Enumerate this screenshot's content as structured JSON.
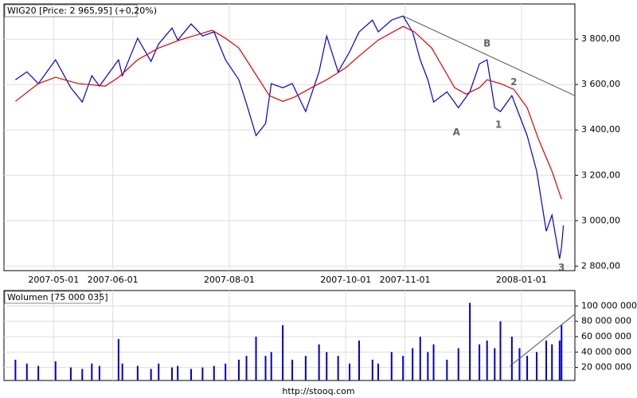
{
  "chart_data": [
    {
      "type": "line",
      "title": "WIG20 [Price: 2 965,95] (+0,20%)",
      "xlim": [
        "2007-04-05",
        "2008-01-29"
      ],
      "xticks": [
        "2007-05-01",
        "2007-06-01",
        "2007-08-01",
        "2007-10-01",
        "2007-11-01",
        "2008-01-01"
      ],
      "ylim": [
        2780,
        3955
      ],
      "yticks": [
        {
          "value": 2800,
          "label": "2 800,00"
        },
        {
          "value": 3000,
          "label": "3 000,00"
        },
        {
          "value": 3200,
          "label": "3 200,00"
        },
        {
          "value": 3400,
          "label": "3 400,00"
        },
        {
          "value": 3600,
          "label": "3 600,00"
        },
        {
          "value": 3800,
          "label": "3 800,00"
        }
      ],
      "grid": true,
      "series": [
        {
          "color": "#0000cc",
          "x": [
            "2007-04-11",
            "2007-04-17",
            "2007-04-23",
            "2007-05-02",
            "2007-05-10",
            "2007-05-16",
            "2007-05-21",
            "2007-05-25",
            "2007-06-04",
            "2007-06-06",
            "2007-06-14",
            "2007-06-21",
            "2007-06-25",
            "2007-07-02",
            "2007-07-05",
            "2007-07-12",
            "2007-07-18",
            "2007-07-24",
            "2007-07-30",
            "2007-08-06",
            "2007-08-10",
            "2007-08-15",
            "2007-08-20",
            "2007-08-23",
            "2007-08-29",
            "2007-09-03",
            "2007-09-10",
            "2007-09-17",
            "2007-09-21",
            "2007-09-27",
            "2007-10-03",
            "2007-10-08",
            "2007-10-15",
            "2007-10-18",
            "2007-10-25",
            "2007-10-31",
            "2007-11-05",
            "2007-11-09",
            "2007-11-13",
            "2007-11-16",
            "2007-11-23",
            "2007-11-29",
            "2007-12-05",
            "2007-12-10",
            "2007-12-14",
            "2007-12-18",
            "2007-12-21",
            "2007-12-27",
            "2007-12-31",
            "2008-01-04",
            "2008-01-09",
            "2008-01-14",
            "2008-01-17",
            "2008-01-21",
            "2008-01-22",
            "2008-01-23"
          ],
          "values": [
            3621,
            3656,
            3604,
            3709,
            3586,
            3523,
            3639,
            3593,
            3709,
            3639,
            3804,
            3702,
            3779,
            3849,
            3796,
            3867,
            3814,
            3832,
            3709,
            3621,
            3516,
            3375,
            3428,
            3604,
            3586,
            3604,
            3481,
            3656,
            3814,
            3656,
            3744,
            3832,
            3884,
            3832,
            3884,
            3902,
            3832,
            3709,
            3621,
            3523,
            3568,
            3498,
            3568,
            3691,
            3709,
            3498,
            3481,
            3551,
            3463,
            3375,
            3218,
            2954,
            3025,
            2832,
            2884,
            2979
          ]
        },
        {
          "color": "#dd0000",
          "x": [
            "2007-04-11",
            "2007-04-23",
            "2007-05-02",
            "2007-05-14",
            "2007-05-28",
            "2007-06-04",
            "2007-06-14",
            "2007-06-25",
            "2007-07-06",
            "2007-07-23",
            "2007-07-30",
            "2007-08-06",
            "2007-08-14",
            "2007-08-22",
            "2007-08-29",
            "2007-09-04",
            "2007-09-13",
            "2007-09-21",
            "2007-10-01",
            "2007-10-08",
            "2007-10-18",
            "2007-10-31",
            "2007-11-06",
            "2007-11-15",
            "2007-11-21",
            "2007-11-27",
            "2007-12-03",
            "2007-12-10",
            "2007-12-14",
            "2007-12-21",
            "2007-12-28",
            "2008-01-04",
            "2008-01-10",
            "2008-01-17",
            "2008-01-22"
          ],
          "values": [
            3526,
            3604,
            3632,
            3604,
            3593,
            3632,
            3709,
            3761,
            3796,
            3839,
            3804,
            3761,
            3656,
            3551,
            3526,
            3544,
            3586,
            3621,
            3674,
            3726,
            3796,
            3856,
            3832,
            3761,
            3674,
            3586,
            3558,
            3586,
            3621,
            3604,
            3579,
            3498,
            3358,
            3218,
            3095
          ]
        }
      ],
      "trend_lines": [
        {
          "color": "#555555",
          "x": [
            "2007-10-31",
            "2008-01-29"
          ],
          "values": [
            3902,
            3551
          ]
        }
      ],
      "annotations": [
        {
          "text": "A",
          "x": "2007-11-28",
          "y": 3389
        },
        {
          "text": "B",
          "x": "2007-12-14",
          "y": 3779
        },
        {
          "text": "1",
          "x": "2007-12-20",
          "y": 3421
        },
        {
          "text": "2",
          "x": "2007-12-28",
          "y": 3610
        },
        {
          "text": "3",
          "x": "2008-01-22",
          "y": 2793
        }
      ]
    },
    {
      "type": "bar",
      "title": "Wolumen [75 000 035]",
      "color": "#0000cc",
      "ylim": [
        3000000,
        120000000
      ],
      "yticks": [
        {
          "value": 20000000,
          "label": "20 000 000"
        },
        {
          "value": 40000000,
          "label": "40 000 000"
        },
        {
          "value": 60000000,
          "label": "60 000 000"
        },
        {
          "value": 80000000,
          "label": "80 000 000"
        },
        {
          "value": 100000000,
          "label": "100 000 000"
        }
      ],
      "grid": true,
      "x": [
        "2007-04-11",
        "2007-04-17",
        "2007-04-23",
        "2007-05-02",
        "2007-05-10",
        "2007-05-16",
        "2007-05-21",
        "2007-05-25",
        "2007-06-04",
        "2007-06-06",
        "2007-06-14",
        "2007-06-21",
        "2007-06-25",
        "2007-07-02",
        "2007-07-05",
        "2007-07-12",
        "2007-07-18",
        "2007-07-24",
        "2007-07-30",
        "2007-08-06",
        "2007-08-10",
        "2007-08-15",
        "2007-08-20",
        "2007-08-23",
        "2007-08-29",
        "2007-09-03",
        "2007-09-10",
        "2007-09-17",
        "2007-09-21",
        "2007-09-27",
        "2007-10-03",
        "2007-10-08",
        "2007-10-15",
        "2007-10-18",
        "2007-10-25",
        "2007-10-31",
        "2007-11-05",
        "2007-11-09",
        "2007-11-13",
        "2007-11-16",
        "2007-11-23",
        "2007-11-29",
        "2007-12-05",
        "2007-12-10",
        "2007-12-14",
        "2007-12-18",
        "2007-12-21",
        "2007-12-27",
        "2007-12-31",
        "2008-01-04",
        "2008-01-09",
        "2008-01-14",
        "2008-01-17",
        "2008-01-21",
        "2008-01-22"
      ],
      "values": [
        30000000,
        25000000,
        22000000,
        28000000,
        20000000,
        18000000,
        25000000,
        22000000,
        57000000,
        25000000,
        22000000,
        18000000,
        25000000,
        20000000,
        22000000,
        18000000,
        20000000,
        22000000,
        25000000,
        30000000,
        35000000,
        60000000,
        35000000,
        40000000,
        75000000,
        30000000,
        35000000,
        50000000,
        40000000,
        35000000,
        25000000,
        55000000,
        30000000,
        25000000,
        40000000,
        35000000,
        45000000,
        60000000,
        40000000,
        50000000,
        30000000,
        45000000,
        104000000,
        50000000,
        55000000,
        45000000,
        80000000,
        60000000,
        45000000,
        35000000,
        40000000,
        55000000,
        50000000,
        55000000,
        75000000
      ],
      "trend_lines": [
        {
          "color": "#555555",
          "x": [
            "2007-12-26",
            "2008-01-29"
          ],
          "values": [
            21800000,
            89400000
          ]
        }
      ]
    }
  ],
  "footer": "http://stooq.com"
}
